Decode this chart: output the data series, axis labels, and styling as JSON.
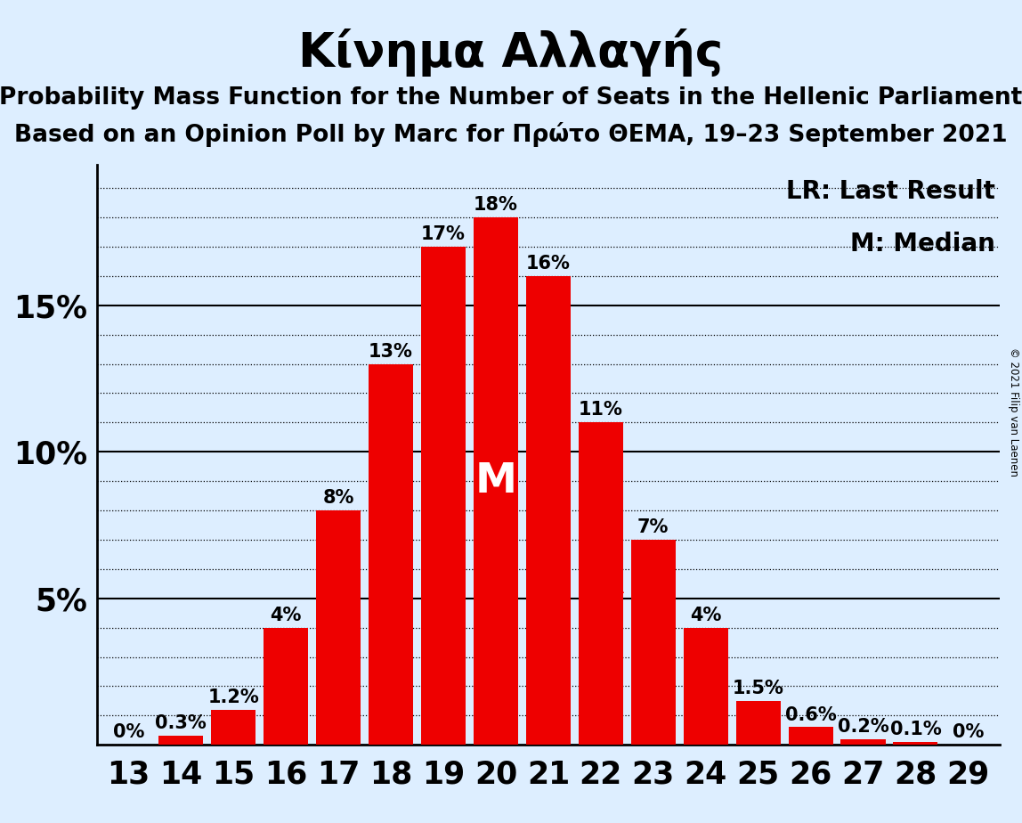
{
  "title": "Κίνημα Αλλαγής",
  "subtitle1": "Probability Mass Function for the Number of Seats in the Hellenic Parliament",
  "subtitle2": "Based on an Opinion Poll by Marc for Πρώτο ΘΕΜΑ, 19–23 September 2021",
  "copyright": "© 2021 Filip van Laenen",
  "seats": [
    13,
    14,
    15,
    16,
    17,
    18,
    19,
    20,
    21,
    22,
    23,
    24,
    25,
    26,
    27,
    28,
    29
  ],
  "probabilities": [
    0.0,
    0.3,
    1.2,
    4.0,
    8.0,
    13.0,
    17.0,
    18.0,
    16.0,
    11.0,
    7.0,
    4.0,
    1.5,
    0.6,
    0.2,
    0.1,
    0.0
  ],
  "bar_color": "#EE0000",
  "median_seat": 20,
  "last_result_seat": 22,
  "background_color": "#DDEEFF",
  "yticks": [
    5,
    10,
    15
  ],
  "ylim": [
    0,
    19.8
  ],
  "legend_lr": "LR: Last Result",
  "legend_m": "M: Median",
  "title_fontsize": 38,
  "subtitle_fontsize": 19,
  "bar_label_fontsize": 15,
  "tick_fontsize": 25,
  "legend_fontsize": 20,
  "median_label_fontsize": 34,
  "lr_label_fontsize": 28,
  "lr_label_color": "#EE0000",
  "median_label_color": "#FFFFFF"
}
